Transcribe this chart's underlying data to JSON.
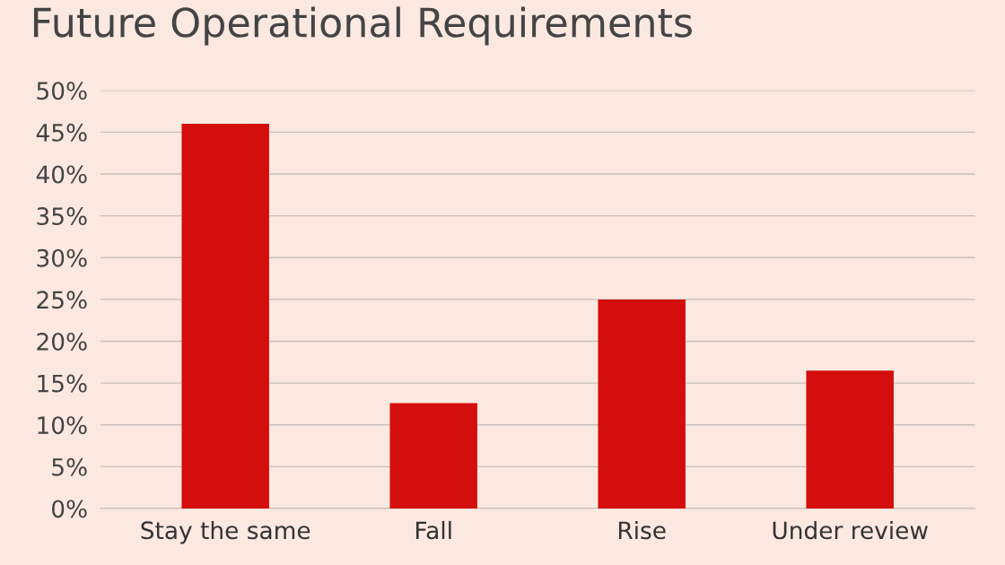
{
  "chart_data": {
    "type": "bar",
    "title": "Future Operational Requirements",
    "categories": [
      "Stay the same",
      "Fall",
      "Rise",
      "Under review"
    ],
    "values": [
      46,
      12.6,
      25,
      16.5
    ],
    "color": "#d40d0d",
    "ylim": [
      0,
      50
    ],
    "yticks": [
      {
        "value": 0,
        "label": "0%"
      },
      {
        "value": 5,
        "label": "5%"
      },
      {
        "value": 10,
        "label": "10%"
      },
      {
        "value": 15,
        "label": "15%"
      },
      {
        "value": 20,
        "label": "20%"
      },
      {
        "value": 25,
        "label": "25%"
      },
      {
        "value": 30,
        "label": "30%"
      },
      {
        "value": 35,
        "label": "35%"
      },
      {
        "value": 40,
        "label": "40%"
      },
      {
        "value": 45,
        "label": "45%"
      },
      {
        "value": 50,
        "label": "50%"
      }
    ],
    "grid": "y"
  }
}
